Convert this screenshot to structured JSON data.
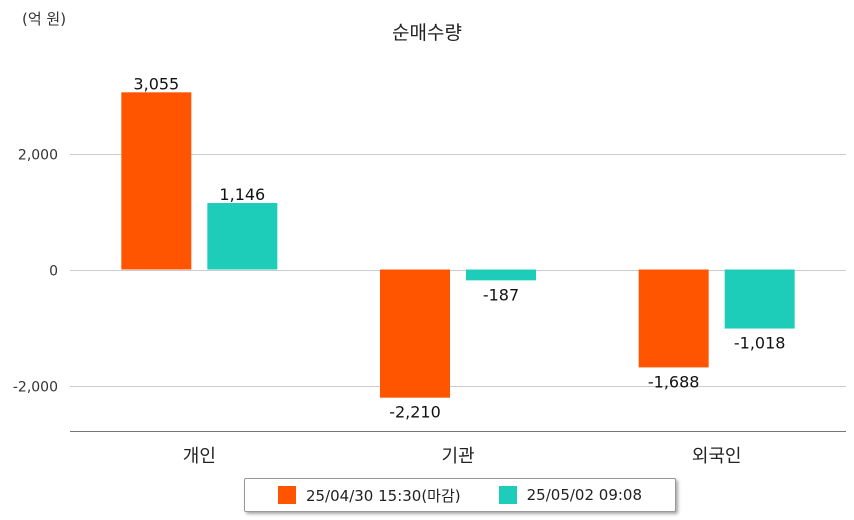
{
  "unit_label": "(억 원)",
  "chart_data": {
    "type": "bar",
    "title": "순매수량",
    "categories": [
      "개인",
      "기관",
      "외국인"
    ],
    "series": [
      {
        "name": "25/04/30 15:30(마감)",
        "color": "#FF5400",
        "values": [
          3055,
          -2210,
          -1688
        ],
        "labels": [
          "3,055",
          "-2,210",
          "-1,688"
        ]
      },
      {
        "name": "25/05/02 09:08",
        "color": "#1ECDB9",
        "values": [
          1146,
          -187,
          -1018
        ],
        "labels": [
          "1,146",
          "-187",
          "-1,018"
        ]
      }
    ],
    "yticks": [
      2000,
      0,
      -2000
    ],
    "ytick_labels": [
      "2,000",
      "0",
      "-2,000"
    ],
    "ylim": [
      -2750,
      3400
    ],
    "grid": true,
    "legend_position": "bottom"
  }
}
